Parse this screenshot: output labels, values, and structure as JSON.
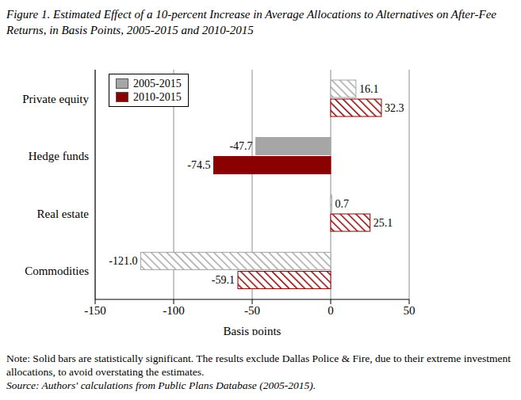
{
  "chart_data": {
    "type": "bar",
    "orientation": "horizontal",
    "title": "Figure 1. Estimated Effect of a 10-percent Increase in Average Allocations to Alternatives on After-Fee Returns, in Basis Points, 2005-2015 and 2010-2015",
    "categories": [
      "Private equity",
      "Hedge funds",
      "Real estate",
      "Commodities"
    ],
    "series": [
      {
        "name": "2005-2015",
        "color": "#a6a6a6",
        "values": [
          16.1,
          -47.7,
          0.7,
          -121.0
        ],
        "value_labels": [
          "16.1",
          "-47.7",
          "0.7",
          "-121.0"
        ],
        "significant": [
          false,
          true,
          false,
          false
        ]
      },
      {
        "name": "2010-2015",
        "color": "#8b0000",
        "values": [
          32.3,
          -74.5,
          25.1,
          -59.1
        ],
        "value_labels": [
          "32.3",
          "-74.5",
          "25.1",
          "-59.1"
        ],
        "significant": [
          false,
          true,
          false,
          false
        ]
      }
    ],
    "xlabel": "Basis points",
    "xlim": [
      -150,
      50
    ],
    "xticks": [
      -150,
      -100,
      -50,
      0,
      50
    ],
    "grid": true,
    "legend": "top-left",
    "data_labels": true,
    "note": "Note: Solid bars are statistically significant.  The results exclude Dallas Police & Fire, due to their extreme investment allocations, to avoid overstating the estimates.",
    "source": "Source: Authors' calculations from Public Plans Database (2005-2015)."
  }
}
